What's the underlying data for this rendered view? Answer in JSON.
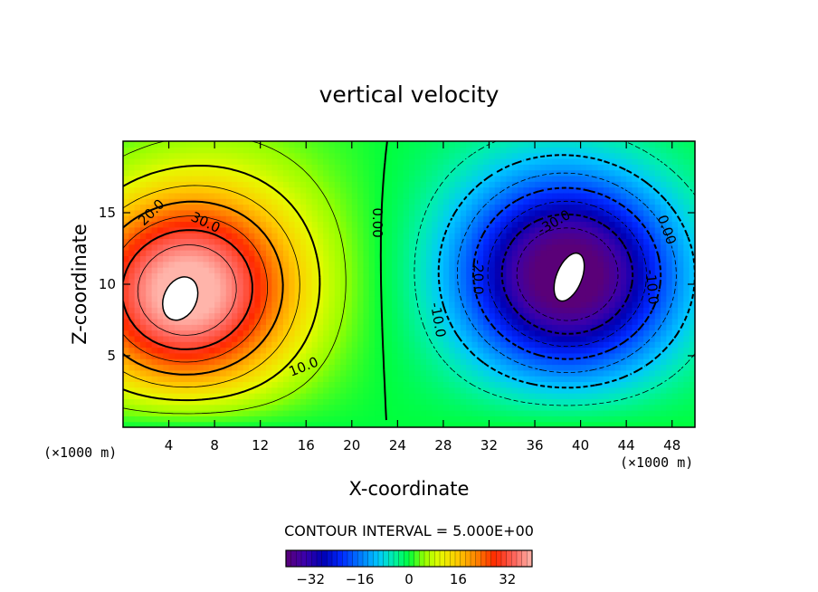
{
  "chart_data": {
    "type": "heatmap",
    "title": "vertical velocity",
    "xlabel": "X-coordinate",
    "ylabel": "Z-coordinate",
    "x_unit": "(×1000 m)",
    "z_unit": "(×1000 m)",
    "xlim": [
      0,
      50
    ],
    "ylim": [
      0,
      20
    ],
    "xticks": [
      4,
      8,
      12,
      16,
      20,
      24,
      28,
      32,
      36,
      40,
      44,
      48
    ],
    "xtick_labels": [
      "4",
      "8",
      "12",
      "16",
      "20",
      "24",
      "28",
      "32",
      "36",
      "40",
      "44",
      "48"
    ],
    "yticks": [
      5,
      10,
      15
    ],
    "ytick_labels": [
      "5",
      "10",
      "15"
    ],
    "contour_interval_text": "CONTOUR INTERVAL = 5.000E+00",
    "contour_labels": [
      {
        "text": "20.0",
        "x": 2.5,
        "z": 15.0,
        "angle": -45
      },
      {
        "text": "30.0",
        "x": 7.2,
        "z": 14.3,
        "angle": 25
      },
      {
        "text": "10.0",
        "x": 15.8,
        "z": 4.2,
        "angle": -22
      },
      {
        "text": "0.00",
        "x": 22.2,
        "z": 14.3,
        "angle": 90
      },
      {
        "text": "-30.0",
        "x": 37.7,
        "z": 14.3,
        "angle": -30
      },
      {
        "text": "-20.0",
        "x": 31.0,
        "z": 10.5,
        "angle": 90
      },
      {
        "text": "-10.0",
        "x": 27.5,
        "z": 7.5,
        "angle": 80
      },
      {
        "text": "0.00",
        "x": 47.5,
        "z": 13.8,
        "angle": 70
      },
      {
        "text": "-10.0",
        "x": 46.2,
        "z": 9.8,
        "angle": 85
      }
    ],
    "extrema": [
      {
        "sign": "positive",
        "value_approx": 40,
        "x": 5,
        "z": 9,
        "note": "updraft core"
      },
      {
        "sign": "negative",
        "value_approx": -40,
        "x": 39,
        "z": 10.5,
        "note": "downdraft core"
      }
    ],
    "colorbar": {
      "min": -40,
      "max": 40,
      "ticks": [
        -32,
        -16,
        0,
        16,
        32
      ],
      "tick_labels": [
        "−32",
        "−16",
        "0",
        "16",
        "32"
      ],
      "levels": 48
    }
  }
}
